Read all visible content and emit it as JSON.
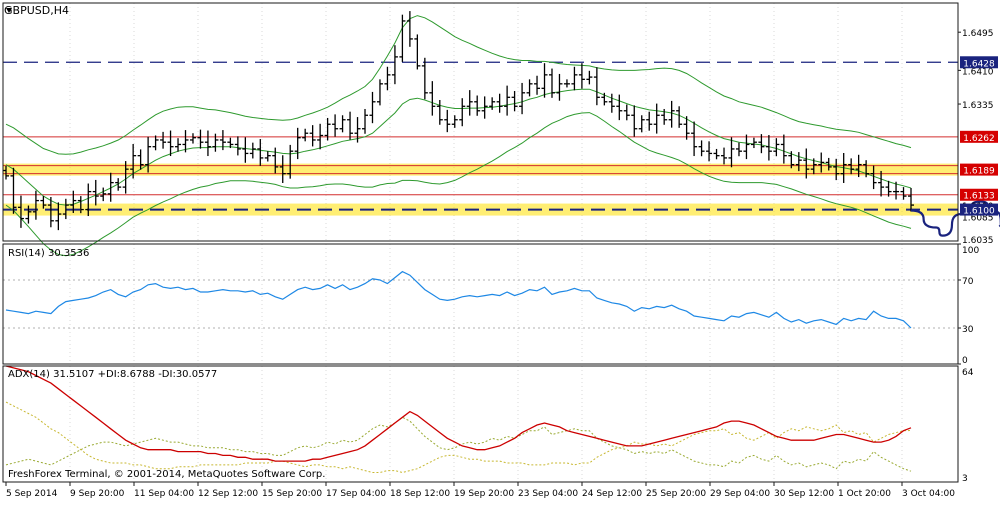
{
  "chart_data": {
    "type": "line",
    "symbol_label": "GBPUSD,H4",
    "copyright": "FreshForex Terminal, © 2001-2014, MetaQuotes Software Corp.",
    "x_ticks": [
      "5 Sep 2014",
      "9 Sep 20:00",
      "11 Sep 04:00",
      "12 Sep 12:00",
      "15 Sep 20:00",
      "17 Sep 04:00",
      "18 Sep 12:00",
      "19 Sep 20:00",
      "23 Sep 04:00",
      "24 Sep 12:00",
      "25 Sep 20:00",
      "29 Sep 04:00",
      "30 Sep 12:00",
      "1 Oct 20:00",
      "3 Oct 04:00"
    ],
    "price_panel": {
      "ylim": [
        1.603,
        1.656
      ],
      "y_ticks": [
        "1.6495",
        "1.6410",
        "1.6335"
      ],
      "level_tags": [
        {
          "label": "1.6428",
          "value": 1.6428,
          "color": "#1a237e"
        },
        {
          "label": "1.6262",
          "value": 1.6262,
          "color": "#d50000"
        },
        {
          "label": "1.6189",
          "value": 1.6189,
          "color": "#d50000"
        },
        {
          "label": "1.6133",
          "value": 1.6133,
          "color": "#d50000"
        },
        {
          "label": "1.6100",
          "value": 1.61,
          "color": "#1a237e"
        }
      ],
      "partial_ticks": [
        "1.6110",
        "1.6035",
        "1.6085"
      ],
      "levels": [
        {
          "value": 1.6428,
          "style": "dashed",
          "color": "#1a237e"
        },
        {
          "value": 1.6262,
          "style": "solid",
          "color": "#d32f2f"
        },
        {
          "value": 1.6189,
          "style": "zone",
          "color": "#d32f2f"
        },
        {
          "value": 1.6133,
          "style": "solid",
          "color": "#d32f2f"
        },
        {
          "value": 1.61,
          "style": "zone-dashed",
          "color": "#1a237e"
        }
      ],
      "close": [
        1.6175,
        1.6105,
        1.608,
        1.6095,
        1.612,
        1.611,
        1.6075,
        1.609,
        1.611,
        1.612,
        1.61,
        1.614,
        1.613,
        1.6135,
        1.616,
        1.615,
        1.619,
        1.622,
        1.62,
        1.624,
        1.6255,
        1.625,
        1.624,
        1.6245,
        1.6255,
        1.626,
        1.625,
        1.624,
        1.6255,
        1.625,
        1.6245,
        1.6235,
        1.6225,
        1.6235,
        1.6215,
        1.622,
        1.6195,
        1.618,
        1.623,
        1.626,
        1.627,
        1.6255,
        1.6265,
        1.629,
        1.628,
        1.63,
        1.627,
        1.628,
        1.631,
        1.634,
        1.638,
        1.64,
        1.644,
        1.652,
        1.648,
        1.642,
        1.636,
        1.633,
        1.63,
        1.629,
        1.63,
        1.633,
        1.634,
        1.632,
        1.633,
        1.634,
        1.633,
        1.635,
        1.633,
        1.636,
        1.638,
        1.637,
        1.64,
        1.636,
        1.638,
        1.638,
        1.64,
        1.639,
        1.6395,
        1.635,
        1.634,
        1.633,
        1.632,
        1.631,
        1.628,
        1.63,
        1.629,
        1.631,
        1.63,
        1.632,
        1.629,
        1.627,
        1.624,
        1.623,
        1.6225,
        1.622,
        1.6215,
        1.6235,
        1.623,
        1.6245,
        1.625,
        1.624,
        1.623,
        1.6245,
        1.622,
        1.62,
        1.621,
        1.619,
        1.62,
        1.6205,
        1.6195,
        1.618,
        1.62,
        1.619,
        1.62,
        1.618,
        1.616,
        1.615,
        1.614,
        1.614,
        1.613,
        1.611
      ],
      "bb_mid": [
        1.62,
        1.619,
        1.6175,
        1.616,
        1.6145,
        1.613,
        1.612,
        1.6112,
        1.611,
        1.6112,
        1.6118,
        1.6125,
        1.6132,
        1.614,
        1.6148,
        1.6157,
        1.6168,
        1.618,
        1.619,
        1.62,
        1.621,
        1.6218,
        1.6224,
        1.623,
        1.6234,
        1.6237,
        1.6238,
        1.6238,
        1.624,
        1.624,
        1.624,
        1.6238,
        1.6236,
        1.6234,
        1.6232,
        1.623,
        1.6228,
        1.6225,
        1.6224,
        1.6226,
        1.623,
        1.6233,
        1.6237,
        1.6242,
        1.6247,
        1.6252,
        1.6255,
        1.6258,
        1.6262,
        1.627,
        1.6285,
        1.63,
        1.6315,
        1.6335,
        1.6345,
        1.6348,
        1.6344,
        1.6338,
        1.6332,
        1.6328,
        1.6325,
        1.6325,
        1.6326,
        1.6326,
        1.6327,
        1.6328,
        1.633,
        1.6333,
        1.6336,
        1.634,
        1.6346,
        1.635,
        1.6356,
        1.636,
        1.6362,
        1.6365,
        1.6367,
        1.6368,
        1.6368,
        1.6362,
        1.6355,
        1.6348,
        1.6342,
        1.6336,
        1.633,
        1.6326,
        1.6322,
        1.632,
        1.6318,
        1.6315,
        1.631,
        1.6302,
        1.6292,
        1.6282,
        1.6273,
        1.6265,
        1.6258,
        1.6254,
        1.625,
        1.6248,
        1.6246,
        1.6244,
        1.624,
        1.6236,
        1.623,
        1.6224,
        1.6218,
        1.6213,
        1.6209,
        1.6205,
        1.62,
        1.6196,
        1.6193,
        1.619,
        1.6186,
        1.618,
        1.6174,
        1.6168,
        1.6162,
        1.6157,
        1.6153,
        1.6148
      ],
      "bb_width": [
        0.009,
        0.0092,
        0.0095,
        0.0098,
        0.0102,
        0.0106,
        0.011,
        0.0112,
        0.0113,
        0.0112,
        0.011,
        0.0108,
        0.0105,
        0.0102,
        0.01,
        0.0098,
        0.0097,
        0.0097,
        0.0098,
        0.01,
        0.0101,
        0.0101,
        0.01,
        0.0098,
        0.0095,
        0.0092,
        0.0088,
        0.0085,
        0.0082,
        0.0079,
        0.0076,
        0.0074,
        0.0072,
        0.0071,
        0.0071,
        0.0071,
        0.0072,
        0.0074,
        0.0076,
        0.0078,
        0.008,
        0.0082,
        0.0084,
        0.0086,
        0.009,
        0.0095,
        0.01,
        0.0106,
        0.0112,
        0.012,
        0.013,
        0.0142,
        0.0156,
        0.017,
        0.018,
        0.0184,
        0.0183,
        0.018,
        0.0175,
        0.0168,
        0.016,
        0.0152,
        0.0144,
        0.0136,
        0.0128,
        0.012,
        0.0112,
        0.0104,
        0.0098,
        0.0092,
        0.0086,
        0.008,
        0.0074,
        0.0068,
        0.0063,
        0.0058,
        0.0055,
        0.0053,
        0.0052,
        0.0054,
        0.0058,
        0.0063,
        0.0068,
        0.0074,
        0.008,
        0.0085,
        0.009,
        0.0094,
        0.0097,
        0.0099,
        0.01,
        0.0101,
        0.0101,
        0.01,
        0.0099,
        0.0097,
        0.0095,
        0.0093,
        0.009,
        0.0088,
        0.0086,
        0.0084,
        0.0082,
        0.008,
        0.0079,
        0.0078,
        0.0078,
        0.0079,
        0.008,
        0.0081,
        0.0082,
        0.0083,
        0.0084,
        0.0085,
        0.0086,
        0.0087,
        0.0088,
        0.0089,
        0.009,
        0.009,
        0.009,
        0.009
      ],
      "projection": [
        [
          0.0,
          1.6098
        ],
        [
          4.0,
          1.606
        ],
        [
          5.0,
          1.6042
        ],
        [
          8.0,
          1.609
        ],
        [
          11.0,
          1.6118
        ],
        [
          13.5,
          1.6095
        ],
        [
          15.0,
          1.605
        ]
      ]
    },
    "rsi_panel": {
      "label": "RSI(14) 30.3536",
      "ylim": [
        0,
        100
      ],
      "y_ticks": [
        "100",
        "70",
        "30",
        "0"
      ],
      "levels": [
        70,
        30
      ],
      "values": [
        45,
        44,
        43,
        42,
        44,
        43,
        42,
        48,
        52,
        53,
        54,
        55,
        57,
        60,
        62,
        58,
        56,
        60,
        62,
        66,
        67,
        64,
        63,
        64,
        62,
        63,
        60,
        60,
        61,
        62,
        61,
        61,
        60,
        61,
        58,
        59,
        56,
        54,
        58,
        62,
        64,
        62,
        63,
        66,
        63,
        66,
        62,
        64,
        67,
        71,
        70,
        67,
        72,
        77,
        74,
        68,
        62,
        58,
        54,
        53,
        54,
        56,
        57,
        56,
        57,
        58,
        57,
        60,
        57,
        59,
        62,
        61,
        64,
        58,
        60,
        61,
        63,
        61,
        61,
        55,
        53,
        51,
        50,
        48,
        44,
        47,
        46,
        48,
        47,
        49,
        46,
        44,
        40,
        39,
        38,
        37,
        36,
        40,
        39,
        42,
        43,
        41,
        39,
        43,
        38,
        35,
        37,
        34,
        36,
        37,
        35,
        33,
        38,
        36,
        38,
        37,
        44,
        40,
        38,
        38,
        36,
        30
      ]
    },
    "adx_panel": {
      "label": "ADX(14) 31.5107 +DI:8.6788 -DI:30.0577",
      "ylim": [
        3,
        64
      ],
      "y_ticks": [
        "64",
        "3"
      ],
      "adx": [
        64,
        63,
        62,
        61,
        59,
        57,
        55,
        52,
        49,
        46,
        43,
        40,
        37,
        34,
        31,
        28,
        25,
        23,
        21,
        20,
        20,
        20,
        20,
        19,
        19,
        19,
        19,
        18,
        18,
        17,
        17,
        16,
        16,
        15,
        15,
        15,
        14,
        14,
        14,
        14,
        14,
        15,
        15,
        16,
        17,
        18,
        19,
        20,
        22,
        25,
        28,
        31,
        34,
        37,
        40,
        38,
        35,
        32,
        29,
        26,
        24,
        22,
        21,
        20,
        20,
        21,
        22,
        24,
        26,
        29,
        31,
        33,
        34,
        33,
        32,
        30,
        29,
        28,
        27,
        26,
        25,
        24,
        23,
        22,
        22,
        22,
        23,
        24,
        25,
        26,
        27,
        28,
        29,
        30,
        31,
        32,
        34,
        35,
        35,
        34,
        33,
        31,
        29,
        27,
        26,
        25,
        25,
        25,
        25,
        26,
        27,
        28,
        28,
        27,
        26,
        25,
        24,
        24,
        25,
        27,
        30,
        31.5
      ],
      "plus_di": [
        12,
        13,
        14,
        15,
        14,
        13,
        12,
        14,
        16,
        18,
        20,
        22,
        23,
        24,
        24,
        23,
        22,
        23,
        24,
        25,
        26,
        25,
        24,
        24,
        23,
        22,
        22,
        21,
        21,
        21,
        20,
        20,
        19,
        19,
        18,
        18,
        17,
        17,
        19,
        21,
        22,
        21,
        22,
        24,
        23,
        25,
        24,
        25,
        28,
        31,
        33,
        32,
        34,
        37,
        35,
        31,
        27,
        24,
        21,
        20,
        21,
        23,
        24,
        23,
        24,
        26,
        25,
        27,
        26,
        28,
        30,
        30,
        32,
        28,
        29,
        30,
        31,
        30,
        30,
        26,
        24,
        22,
        21,
        20,
        18,
        19,
        18,
        19,
        18,
        20,
        18,
        16,
        14,
        13,
        12,
        12,
        11,
        14,
        13,
        16,
        17,
        15,
        14,
        17,
        14,
        12,
        13,
        11,
        12,
        13,
        12,
        10,
        14,
        13,
        15,
        14,
        19,
        16,
        14,
        12,
        10,
        8.7
      ],
      "minus_di": [
        45,
        43,
        41,
        39,
        37,
        34,
        31,
        29,
        26,
        23,
        20,
        17,
        15,
        14,
        13,
        13,
        13,
        12,
        12,
        11,
        10,
        10,
        10,
        11,
        11,
        11,
        12,
        12,
        12,
        12,
        12,
        12,
        13,
        13,
        13,
        13,
        14,
        14,
        13,
        12,
        11,
        12,
        12,
        11,
        11,
        10,
        11,
        10,
        9,
        8,
        8,
        9,
        9,
        8,
        9,
        10,
        12,
        14,
        16,
        17,
        17,
        16,
        15,
        15,
        14,
        14,
        14,
        13,
        13,
        13,
        12,
        12,
        12,
        13,
        13,
        13,
        12,
        13,
        13,
        16,
        18,
        20,
        21,
        22,
        24,
        23,
        23,
        22,
        23,
        22,
        24,
        26,
        28,
        29,
        30,
        30,
        31,
        28,
        29,
        26,
        25,
        27,
        29,
        26,
        29,
        31,
        30,
        32,
        31,
        30,
        31,
        33,
        29,
        30,
        28,
        29,
        24,
        26,
        28,
        29,
        30,
        30.1
      ]
    }
  },
  "colors": {
    "background": "#ffffff",
    "plot_border": "#1a1a1a",
    "grid": "#d8d8d8",
    "candle": "#000000",
    "bollinger": "#2e9a2e",
    "rsi": "#1e88e5",
    "adx": "#cc0000",
    "plus_di": "#9aaa33",
    "minus_di": "#c8b832",
    "projection": "#1a237e",
    "zone_fill": "#ffe000",
    "tag_text": "#ffffff"
  }
}
